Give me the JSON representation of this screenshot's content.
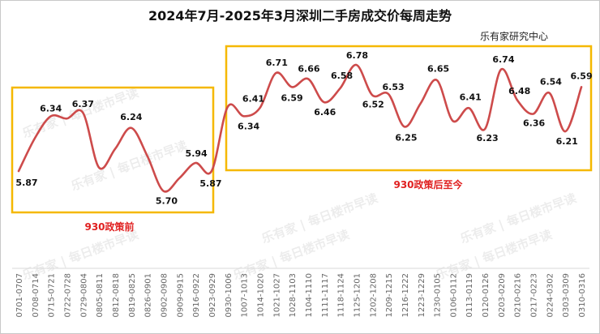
{
  "chart_data": {
    "type": "line",
    "title": "2024年7月-2025年3月深圳二手房成交价每周走势",
    "subtitle": "乐有家研究中心",
    "xlabel": "",
    "ylabel": "",
    "grid": false,
    "categories": [
      "0701-0707",
      "0708-0714",
      "0715-0721",
      "0722-0728",
      "0729-0804",
      "0805-0811",
      "0812-0818",
      "0819-0825",
      "0826-0901",
      "0902-0908",
      "0909-0915",
      "0916-0922",
      "0923-0929",
      "0930-1006",
      "1007-1013",
      "1014-1020",
      "1021-1027",
      "1028-1103",
      "1104-1110",
      "1111-1117",
      "1118-1124",
      "1125-1201",
      "1202-1208",
      "1209-1215",
      "1216-1222",
      "1223-1229",
      "1230-0105",
      "0106-0112",
      "0113-0119",
      "0120-0126",
      "0203-0209",
      "0210-0216",
      "0217-0223",
      "0224-0302",
      "0303-0309",
      "0310-0316"
    ],
    "values": [
      5.87,
      6.15,
      6.34,
      6.32,
      6.37,
      5.9,
      6.06,
      6.24,
      6.0,
      5.7,
      5.81,
      5.94,
      5.87,
      6.42,
      6.34,
      6.41,
      6.71,
      6.59,
      6.66,
      6.46,
      6.58,
      6.78,
      6.52,
      6.53,
      6.25,
      6.45,
      6.65,
      6.3,
      6.41,
      6.23,
      6.74,
      6.48,
      6.36,
      6.54,
      6.21,
      6.59
    ],
    "data_labels": [
      "5.87",
      null,
      "6.34",
      null,
      "6.37",
      null,
      null,
      "6.24",
      null,
      "5.70",
      null,
      "5.94",
      "5.87",
      null,
      "6.34",
      "6.41",
      "6.71",
      "6.59",
      "6.66",
      "6.46",
      "6.58",
      "6.78",
      "6.52",
      "6.53",
      "6.25",
      null,
      "6.65",
      null,
      "6.41",
      "6.23",
      "6.74",
      "6.48",
      "6.36",
      "6.54",
      "6.21",
      "6.59"
    ],
    "line_color": "#cd4b4b",
    "annotations": [
      {
        "label": "930政策前",
        "from": "0701-0707",
        "to": "0923-0929",
        "color": "#f5b800",
        "text_color": "#e02020"
      },
      {
        "label": "930政策后至今",
        "from": "0930-1006",
        "to": "0310-0316",
        "color": "#f5b800",
        "text_color": "#e02020"
      }
    ]
  },
  "watermark": "乐有家 | 每日楼市早读"
}
